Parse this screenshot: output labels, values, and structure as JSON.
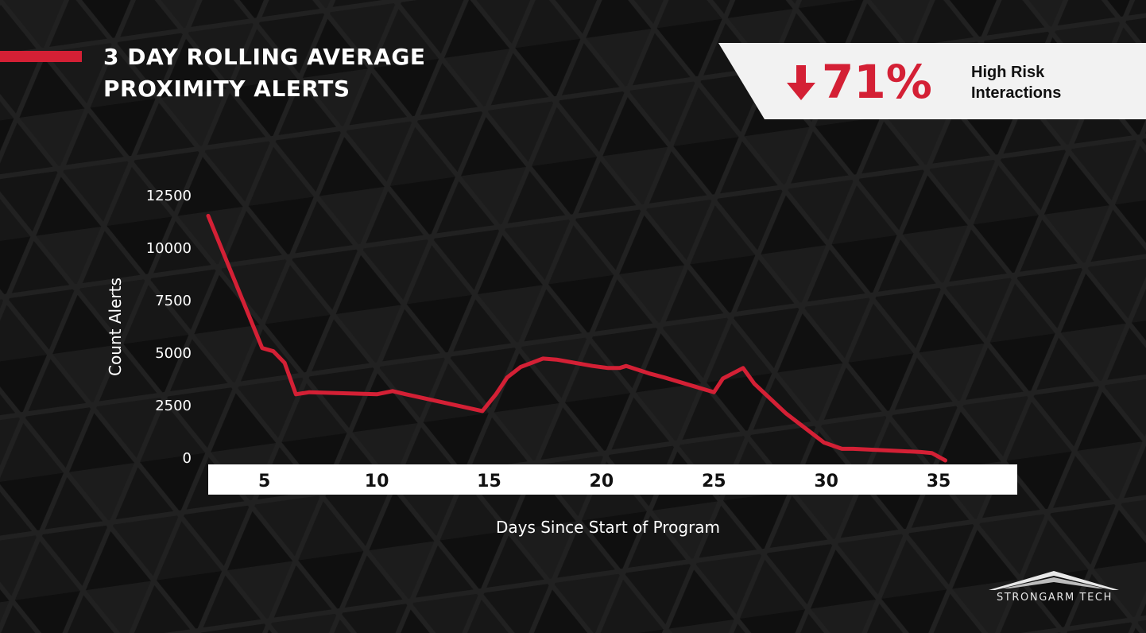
{
  "header": {
    "title_line1": "3 DAY ROLLING AVERAGE",
    "title_line2": "PROXIMITY ALERTS",
    "accent_color": "#d42035"
  },
  "stat": {
    "icon": "down-arrow-icon",
    "value": "71%",
    "label_line1": "High Risk",
    "label_line2": "Interactions"
  },
  "chart_data": {
    "type": "line",
    "title": "",
    "xlabel": "Days Since Start of Program",
    "ylabel": "Count Alerts",
    "xlim": [
      2.5,
      38.5
    ],
    "ylim": [
      0,
      12500
    ],
    "x_ticks": [
      5,
      10,
      15,
      20,
      25,
      30,
      35
    ],
    "y_ticks": [
      12500,
      10000,
      7500,
      5000,
      2500,
      0
    ],
    "grid": false,
    "series": [
      {
        "color": "#d42035",
        "x": [
          2.5,
          4.9,
          5.4,
          5.9,
          6.4,
          7.0,
          10.0,
          10.7,
          11.3,
          14.7,
          15.3,
          15.8,
          16.4,
          17.4,
          18.0,
          19.6,
          20.3,
          20.8,
          21.1,
          22.1,
          22.8,
          25.0,
          25.4,
          26.3,
          26.8,
          27.8,
          28.2,
          29.9,
          30.7,
          31.2,
          34.2,
          34.7,
          35.3
        ],
        "y": [
          11500,
          5200,
          5050,
          4500,
          3000,
          3100,
          3000,
          3150,
          3000,
          2200,
          3000,
          3800,
          4300,
          4700,
          4650,
          4350,
          4250,
          4250,
          4350,
          4000,
          3800,
          3100,
          3750,
          4250,
          3500,
          2500,
          2100,
          700,
          400,
          400,
          250,
          200,
          -150
        ]
      }
    ]
  },
  "brand": {
    "logo_icon": "strongarm-roof-logo-icon",
    "name": "STRONGARM TECH"
  }
}
